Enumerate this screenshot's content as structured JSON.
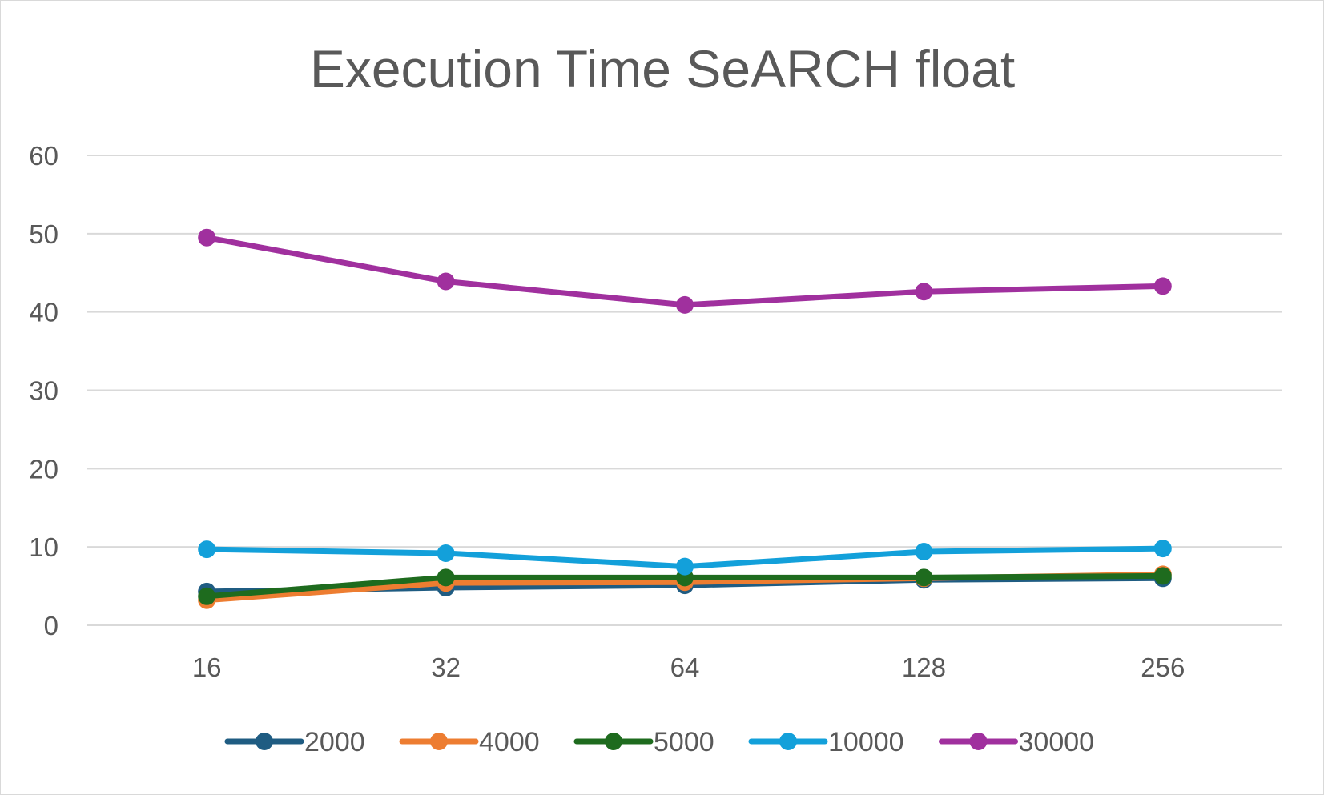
{
  "chart_data": {
    "type": "line",
    "title": "Execution Time SeARCH float",
    "xlabel": "",
    "ylabel": "",
    "categories": [
      "16",
      "32",
      "64",
      "128",
      "256"
    ],
    "ylim": [
      0,
      60
    ],
    "yticks": [
      0,
      10,
      20,
      30,
      40,
      50,
      60
    ],
    "grid": true,
    "legend_position": "bottom",
    "series": [
      {
        "name": "2000",
        "color": "#1f5c82",
        "values": [
          4.3,
          4.8,
          5.1,
          5.8,
          6.0
        ]
      },
      {
        "name": "4000",
        "color": "#ed7d31",
        "values": [
          3.2,
          5.4,
          5.5,
          6.0,
          6.5
        ]
      },
      {
        "name": "5000",
        "color": "#1e6b1e",
        "values": [
          3.7,
          6.1,
          6.1,
          6.1,
          6.3
        ]
      },
      {
        "name": "10000",
        "color": "#13a0da",
        "values": [
          9.7,
          9.2,
          7.5,
          9.4,
          9.8
        ]
      },
      {
        "name": "30000",
        "color": "#a0309e",
        "values": [
          49.5,
          43.9,
          40.9,
          42.6,
          43.3
        ]
      }
    ]
  }
}
